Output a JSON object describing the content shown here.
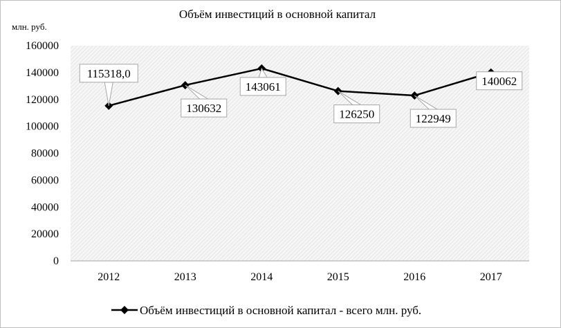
{
  "chart_data": {
    "type": "line",
    "title": "Объём инвестиций в основной капитал",
    "ylabel": "млн. руб.",
    "xlabel": "",
    "categories": [
      "2012",
      "2013",
      "2014",
      "2015",
      "2016",
      "2017"
    ],
    "y_ticks": [
      "0",
      "20000",
      "40000",
      "60000",
      "80000",
      "100000",
      "120000",
      "140000",
      "160000"
    ],
    "ylim": [
      0,
      160000
    ],
    "series": [
      {
        "name": "Объём инвестиций в основной капитал - всего млн. руб.",
        "values": [
          115318.0,
          130632,
          143061,
          126250,
          122949,
          140062
        ],
        "labels": [
          "115318,0",
          "130632",
          "143061",
          "126250",
          "122949",
          "140062"
        ],
        "color": "#000000",
        "marker": "diamond"
      }
    ],
    "grid": false,
    "plot_area_fill": "hatched light gray",
    "legend_position": "bottom"
  }
}
